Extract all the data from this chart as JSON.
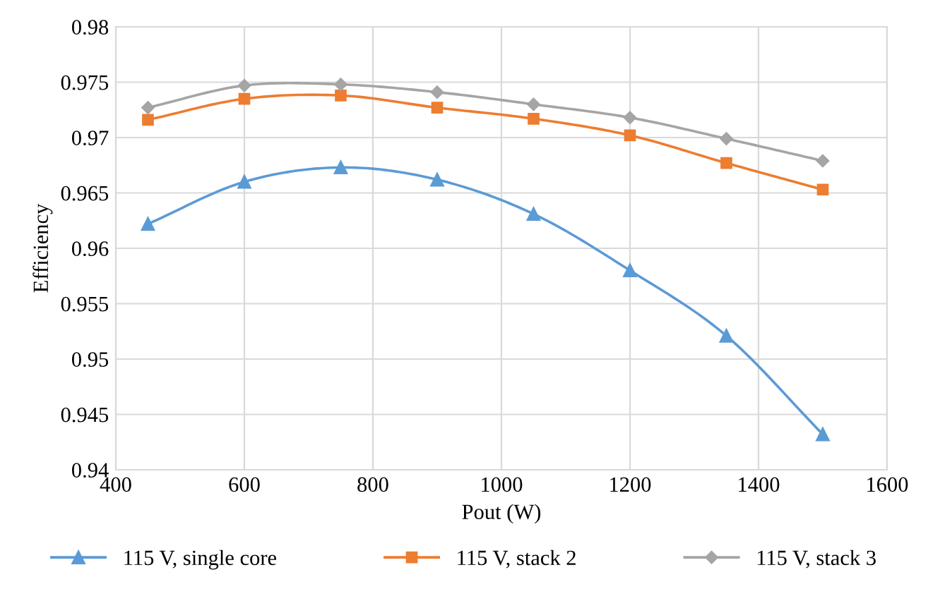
{
  "chart_data": {
    "type": "line",
    "xlabel": "Pout (W)",
    "ylabel": "Efficiency",
    "x": [
      450,
      600,
      750,
      900,
      1050,
      1200,
      1350,
      1500
    ],
    "series": [
      {
        "name": "115 V, single core",
        "color": "#5b9bd5",
        "marker": "triangle",
        "values": [
          0.9622,
          0.966,
          0.9673,
          0.9662,
          0.9631,
          0.958,
          0.9521,
          0.9432
        ]
      },
      {
        "name": "115 V, stack 2",
        "color": "#ed7d31",
        "marker": "square",
        "values": [
          0.9716,
          0.9735,
          0.9738,
          0.9727,
          0.9717,
          0.9702,
          0.9677,
          0.9653
        ]
      },
      {
        "name": "115 V, stack 3",
        "color": "#a5a5a5",
        "marker": "diamond",
        "values": [
          0.9727,
          0.9747,
          0.9748,
          0.9741,
          0.973,
          0.9718,
          0.9699,
          0.9679
        ]
      }
    ],
    "xlim": [
      400,
      1600
    ],
    "xticks": [
      400,
      600,
      800,
      1000,
      1200,
      1400,
      1600
    ],
    "ylim": [
      0.94,
      0.98
    ],
    "yticks": [
      0.94,
      0.945,
      0.95,
      0.955,
      0.96,
      0.965,
      0.97,
      0.975,
      0.98
    ],
    "grid": true,
    "legend": "bottom",
    "line_style": "solid"
  }
}
